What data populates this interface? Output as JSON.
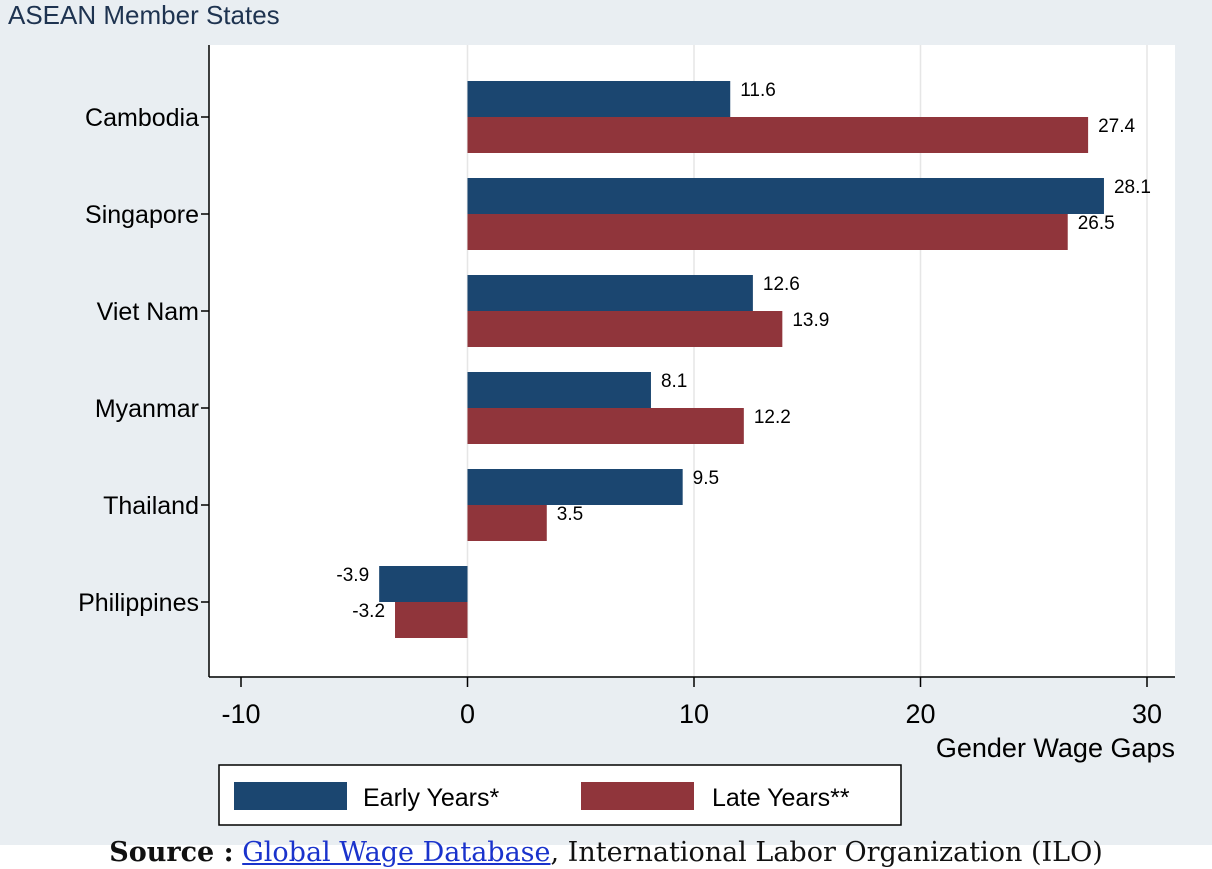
{
  "chart_data": {
    "type": "bar",
    "orientation": "horizontal",
    "title": "ASEAN Member States",
    "xlabel": "Gender Wage Gaps",
    "ylabel": "",
    "xlim": [
      -10,
      30
    ],
    "x_ticks": [
      -10,
      0,
      10,
      20,
      30
    ],
    "grid": true,
    "legend_position": "bottom",
    "categories": [
      "Cambodia",
      "Singapore",
      "Viet Nam",
      "Myanmar",
      "Thailand",
      "Philippines"
    ],
    "series": [
      {
        "name": "Early Years*",
        "color": "#1b4670",
        "values": [
          11.6,
          28.1,
          12.6,
          8.1,
          9.5,
          -3.9
        ]
      },
      {
        "name": "Late Years**",
        "color": "#90353b",
        "values": [
          27.4,
          26.5,
          13.9,
          12.2,
          3.5,
          -3.2
        ]
      }
    ]
  },
  "source": {
    "label": "Source :",
    "link_text": "Global Wage Database",
    "rest": ", International Labor Organization (ILO)"
  }
}
